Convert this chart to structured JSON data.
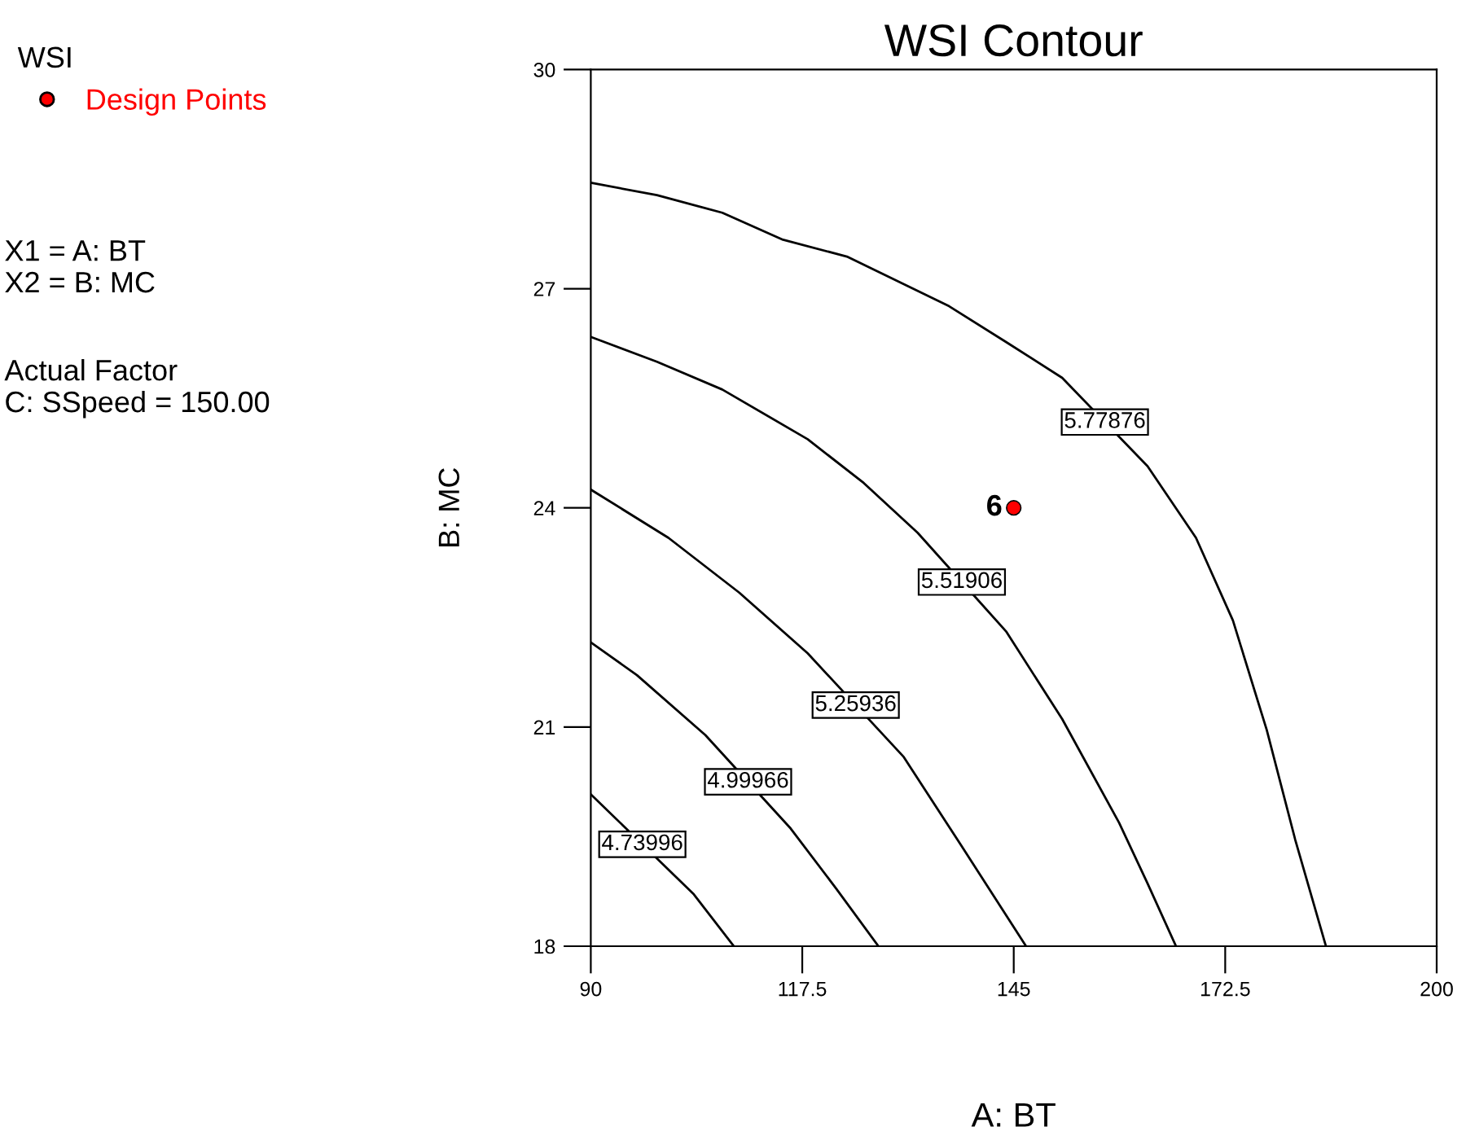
{
  "chart_data": {
    "type": "line",
    "title": "WSI Contour",
    "xlabel": "A: BT",
    "ylabel": "B: MC",
    "legend_title": "WSI",
    "legend": "left",
    "grid": false,
    "marker": "none",
    "line_style": "solid",
    "xlim": [
      90,
      200
    ],
    "xticks": [
      90,
      117.5,
      145,
      172.5,
      200
    ],
    "ylim": [
      18,
      30
    ],
    "yticks": [
      18,
      21,
      24,
      27,
      30
    ],
    "series": [
      {
        "name": "4.73996",
        "color": "#000000",
        "x": [
          90,
          103.4,
          108.6
        ],
        "values": [
          20.08,
          18.71,
          18
        ]
      },
      {
        "name": "4.99966",
        "color": "#000000",
        "x": [
          90,
          96.0,
          104.9,
          116.0,
          121.9,
          127.4
        ],
        "values": [
          22.16,
          21.71,
          20.89,
          19.61,
          18.79,
          18
        ]
      },
      {
        "name": "5.25936",
        "color": "#000000",
        "x": [
          90,
          100.1,
          109.3,
          118.2,
          130.7,
          138.1,
          146.6
        ],
        "values": [
          24.25,
          23.59,
          22.84,
          22.01,
          20.59,
          19.39,
          18
        ]
      },
      {
        "name": "5.51906",
        "color": "#000000",
        "x": [
          90,
          98.6,
          107.1,
          118.2,
          125.5,
          132.5,
          144.0,
          151.3,
          158.7,
          162.4,
          166.1
        ],
        "values": [
          26.34,
          26.0,
          25.62,
          24.94,
          24.34,
          23.66,
          22.31,
          21.11,
          19.69,
          18.86,
          18
        ]
      },
      {
        "name": "5.77876",
        "color": "#000000",
        "x": [
          90,
          98.6,
          107.1,
          115,
          123.3,
          136.6,
          144,
          151.3,
          162.4,
          168.7,
          173.5,
          177.9,
          181.6,
          185.6
        ],
        "values": [
          28.45,
          28.28,
          28.04,
          27.67,
          27.44,
          26.76,
          26.27,
          25.78,
          24.57,
          23.59,
          22.46,
          20.96,
          19.46,
          18
        ]
      },
      {
        "name": "Design Points",
        "type": "scatter",
        "marker": "circle",
        "color": "#ff0000",
        "x": [
          145
        ],
        "values": [
          24
        ]
      }
    ],
    "annotations": [
      "X1 = A: BT\nX2 = B: MC",
      "Actual Factor\nC: SSpeed = 150.00",
      {
        "text": "6",
        "x": 145,
        "y": 24
      }
    ]
  }
}
